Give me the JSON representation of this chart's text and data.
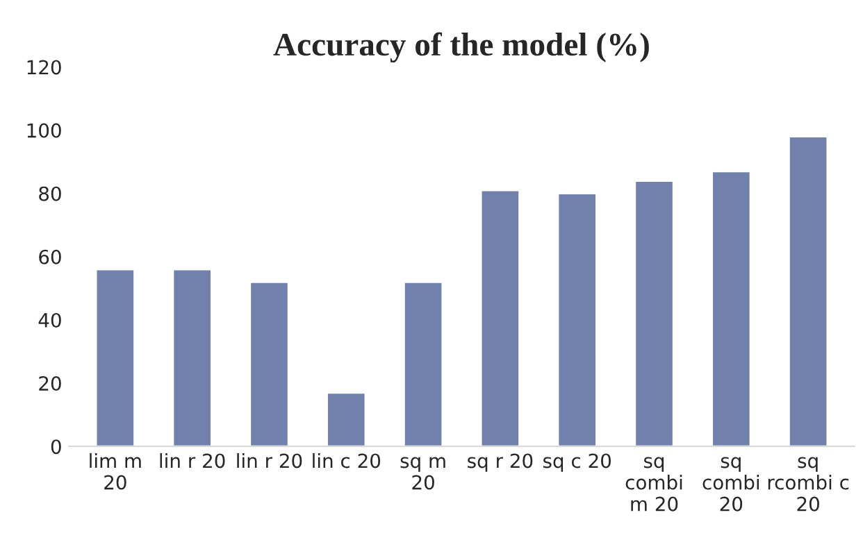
{
  "chart_data": {
    "type": "bar",
    "title": "Accuracy of the model (%)",
    "categories": [
      "lim m\n20",
      "lin r 20",
      "lin r 20",
      "lin c 20",
      "sq m\n20",
      "sq r 20",
      "sq c 20",
      "sq\ncombi\nm 20",
      "sq\ncombi\n20",
      "sq\nrcombi c\n20"
    ],
    "values": [
      56,
      56,
      52,
      17,
      52,
      81,
      80,
      84,
      87,
      98
    ],
    "color": "#7181ab",
    "ylim": [
      0,
      120
    ],
    "yticks": [
      0,
      20,
      40,
      60,
      80,
      100,
      120
    ],
    "grid": false,
    "legend": false
  }
}
